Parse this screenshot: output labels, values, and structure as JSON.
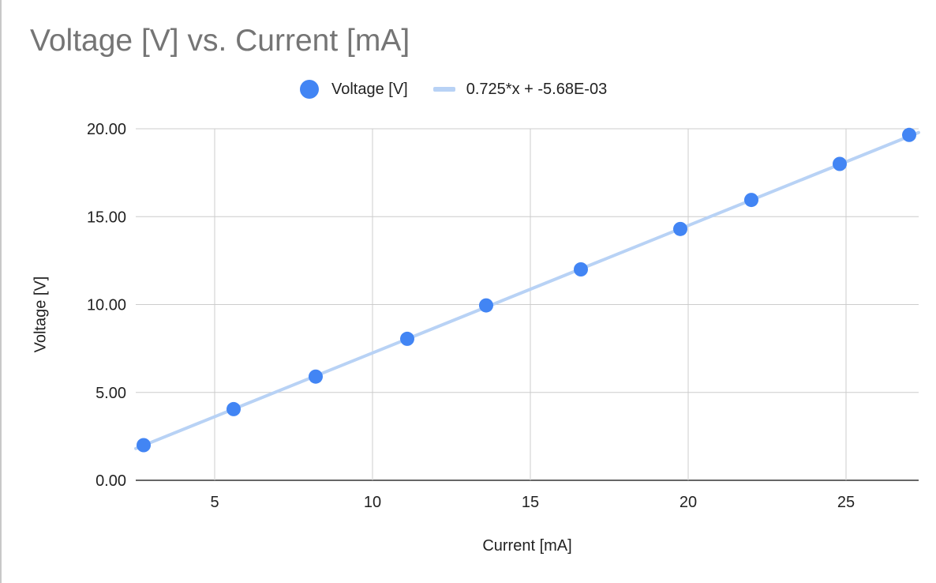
{
  "chart_data": {
    "type": "scatter",
    "title": "Voltage [V] vs. Current [mA]",
    "xlabel": "Current [mA]",
    "ylabel": "Voltage [V]",
    "xlim": [
      2.5,
      27.3
    ],
    "ylim": [
      0,
      20
    ],
    "x_ticks": [
      "5",
      "10",
      "15",
      "20",
      "25"
    ],
    "x_tick_values": [
      5,
      10,
      15,
      20,
      25
    ],
    "y_ticks": [
      "0.00",
      "5.00",
      "10.00",
      "15.00",
      "20.00"
    ],
    "y_tick_values": [
      0,
      5,
      10,
      15,
      20
    ],
    "grid": true,
    "legend_position": "top",
    "series": [
      {
        "name": "Voltage [V]",
        "color": "#4285f4",
        "x": [
          2.75,
          5.6,
          8.2,
          11.1,
          13.6,
          16.6,
          19.75,
          22.0,
          24.8,
          27.0
        ],
        "y": [
          2.0,
          4.05,
          5.9,
          8.05,
          9.95,
          12.0,
          14.3,
          15.95,
          18.0,
          19.65
        ]
      }
    ],
    "trendline": {
      "name": "0.725*x + -5.68E-03",
      "slope": 0.725,
      "intercept": -0.00568,
      "color": "#b8d2f5"
    }
  }
}
